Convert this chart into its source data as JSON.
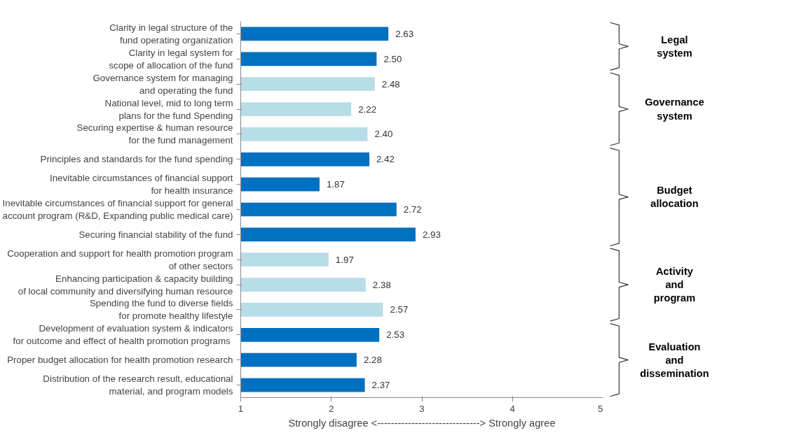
{
  "chart_data": {
    "type": "bar",
    "orientation": "horizontal",
    "categories": [
      "Clarity in legal structure of the\nfund operating organization",
      "Clarity in legal system for\nscope of allocation of the fund",
      "Governance system for managing\nand operating the fund",
      "National level, mid to long term\nplans for the fund Spending",
      "Securing expertise & human resource\nfor the fund management",
      "Principles and standards for the fund spending",
      "Inevitable circumstances of financial support\nfor health insurance",
      "Inevitable circumstances of financial support for general\naccount program (R&D, Expanding public medical care)",
      "Securing financial stability of the fund",
      "Cooperation and support for health promotion program\nof other sectors",
      "Enhancing participation & capacity building\nof local community and diversifying human resource",
      "Spending the fund to diverse fields\nfor promote healthy lifestyle",
      "Development of evaluation system & indicators\nfor  outcome and effect of health promotion programs",
      "Proper budget allocation for health promotion research",
      "Distribution of the research result, educational\nmaterial, and program models"
    ],
    "values": [
      2.63,
      2.5,
      2.48,
      2.22,
      2.4,
      2.42,
      1.87,
      2.72,
      2.93,
      1.97,
      2.38,
      2.57,
      2.53,
      2.28,
      2.37
    ],
    "value_labels": [
      "2.63",
      "2.50",
      "2.48",
      "2.22",
      "2.40",
      "2.42",
      "1.87",
      "2.72",
      "2.93",
      "1.97",
      "2.38",
      "2.57",
      "2.53",
      "2.28",
      "2.37"
    ],
    "colors": [
      "#0070c0",
      "#0070c0",
      "#b7dde8",
      "#b7dde8",
      "#b7dde8",
      "#0070c0",
      "#0070c0",
      "#0070c0",
      "#0070c0",
      "#b7dde8",
      "#b7dde8",
      "#b7dde8",
      "#0070c0",
      "#0070c0",
      "#0070c0"
    ],
    "xlim": [
      1,
      5
    ],
    "xticks": [
      1,
      2,
      3,
      4,
      5
    ],
    "xlabel": "Strongly disagree <------------------------------> Strongly agree",
    "annotations": [
      "Legal system",
      "Governance system",
      "Budget allocation",
      "Activity and program",
      "Evaluation and dissemination"
    ],
    "grid": false,
    "legend": false
  }
}
